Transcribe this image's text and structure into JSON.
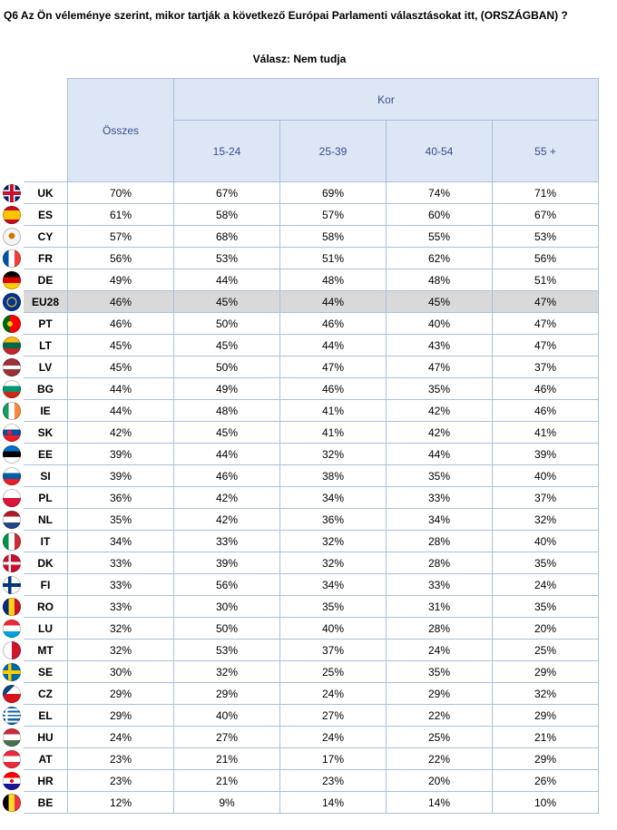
{
  "title": "Q6 Az Ön véleménye szerint, mikor tartják a következő Európai Parlamenti választásokat itt, (ORSZÁGBAN) ?",
  "subtitle": "Válasz: Nem tudja",
  "headers": {
    "total": "Összes",
    "group": "Kor",
    "columns": [
      "15-24",
      "25-39",
      "40-54",
      "55 +"
    ]
  },
  "rows": [
    {
      "code": "UK",
      "total": "70%",
      "v": [
        "67%",
        "69%",
        "74%",
        "71%"
      ]
    },
    {
      "code": "ES",
      "total": "61%",
      "v": [
        "58%",
        "57%",
        "60%",
        "67%"
      ]
    },
    {
      "code": "CY",
      "total": "57%",
      "v": [
        "68%",
        "58%",
        "55%",
        "53%"
      ]
    },
    {
      "code": "FR",
      "total": "56%",
      "v": [
        "53%",
        "51%",
        "62%",
        "56%"
      ]
    },
    {
      "code": "DE",
      "total": "49%",
      "v": [
        "44%",
        "48%",
        "48%",
        "51%"
      ]
    },
    {
      "code": "EU28",
      "total": "46%",
      "v": [
        "45%",
        "44%",
        "45%",
        "47%"
      ],
      "highlight": true
    },
    {
      "code": "PT",
      "total": "46%",
      "v": [
        "50%",
        "46%",
        "40%",
        "47%"
      ]
    },
    {
      "code": "LT",
      "total": "45%",
      "v": [
        "45%",
        "44%",
        "43%",
        "47%"
      ]
    },
    {
      "code": "LV",
      "total": "45%",
      "v": [
        "50%",
        "47%",
        "47%",
        "37%"
      ]
    },
    {
      "code": "BG",
      "total": "44%",
      "v": [
        "49%",
        "46%",
        "35%",
        "46%"
      ]
    },
    {
      "code": "IE",
      "total": "44%",
      "v": [
        "48%",
        "41%",
        "42%",
        "46%"
      ]
    },
    {
      "code": "SK",
      "total": "42%",
      "v": [
        "45%",
        "41%",
        "42%",
        "41%"
      ]
    },
    {
      "code": "EE",
      "total": "39%",
      "v": [
        "44%",
        "32%",
        "44%",
        "39%"
      ]
    },
    {
      "code": "SI",
      "total": "39%",
      "v": [
        "46%",
        "38%",
        "35%",
        "40%"
      ]
    },
    {
      "code": "PL",
      "total": "36%",
      "v": [
        "42%",
        "34%",
        "33%",
        "37%"
      ]
    },
    {
      "code": "NL",
      "total": "35%",
      "v": [
        "42%",
        "36%",
        "34%",
        "32%"
      ]
    },
    {
      "code": "IT",
      "total": "34%",
      "v": [
        "33%",
        "32%",
        "28%",
        "40%"
      ]
    },
    {
      "code": "DK",
      "total": "33%",
      "v": [
        "39%",
        "32%",
        "28%",
        "35%"
      ]
    },
    {
      "code": "FI",
      "total": "33%",
      "v": [
        "56%",
        "34%",
        "33%",
        "24%"
      ]
    },
    {
      "code": "RO",
      "total": "33%",
      "v": [
        "30%",
        "35%",
        "31%",
        "35%"
      ]
    },
    {
      "code": "LU",
      "total": "32%",
      "v": [
        "50%",
        "40%",
        "28%",
        "20%"
      ]
    },
    {
      "code": "MT",
      "total": "32%",
      "v": [
        "53%",
        "37%",
        "24%",
        "25%"
      ]
    },
    {
      "code": "SE",
      "total": "30%",
      "v": [
        "32%",
        "25%",
        "35%",
        "29%"
      ]
    },
    {
      "code": "CZ",
      "total": "29%",
      "v": [
        "29%",
        "24%",
        "29%",
        "32%"
      ]
    },
    {
      "code": "EL",
      "total": "29%",
      "v": [
        "40%",
        "27%",
        "22%",
        "29%"
      ]
    },
    {
      "code": "HU",
      "total": "24%",
      "v": [
        "27%",
        "24%",
        "25%",
        "21%"
      ]
    },
    {
      "code": "AT",
      "total": "23%",
      "v": [
        "21%",
        "17%",
        "22%",
        "29%"
      ]
    },
    {
      "code": "HR",
      "total": "23%",
      "v": [
        "21%",
        "23%",
        "20%",
        "26%"
      ]
    },
    {
      "code": "BE",
      "total": "12%",
      "v": [
        "9%",
        "14%",
        "14%",
        "10%"
      ]
    }
  ],
  "flags": {
    "UK": "linear-gradient(0deg,transparent 40%,#c8102e 40%,#c8102e 60%,transparent 60%),linear-gradient(90deg,transparent 40%,#c8102e 40%,#c8102e 60%,transparent 60%),linear-gradient(0deg,transparent 32%,#fff 32%,#fff 68%,transparent 68%),linear-gradient(90deg,transparent 32%,#fff 32%,#fff 68%,transparent 68%),#012169",
    "ES": "linear-gradient(180deg,#c60b1e 25%,#ffc400 25%,#ffc400 75%,#c60b1e 75%)",
    "CY": "radial-gradient(circle at 50% 45%,#d57800 0 22%,#f4f4f4 23%)",
    "FR": "linear-gradient(90deg,#0055a4 33%,#fff 33%,#fff 66%,#ef4135 66%)",
    "DE": "linear-gradient(180deg,#000 33%,#dd0000 33%,#dd0000 66%,#ffce00 66%)",
    "EU28": "radial-gradient(circle,#003399 0 30%,#ffcc00 31% 38%,#003399 39%)",
    "PT": "radial-gradient(circle at 40% 50%,#ffcc00 0 18%,transparent 19%),linear-gradient(90deg,#006600 40%,#ff0000 40%)",
    "LT": "linear-gradient(180deg,#fdb913 33%,#006a44 33%,#006a44 66%,#c1272d 66%)",
    "LV": "linear-gradient(180deg,#9e3039 40%,#fff 40%,#fff 60%,#9e3039 60%)",
    "BG": "linear-gradient(180deg,#fff 33%,#00966e 33%,#00966e 66%,#d62612 66%)",
    "IE": "linear-gradient(90deg,#169b62 33%,#fff 33%,#fff 66%,#ff883e 66%)",
    "SK": "radial-gradient(circle at 38% 50%,#ee1c25 0 16%,transparent 17%),linear-gradient(180deg,#fff 33%,#0b4ea2 33%,#0b4ea2 66%,#ee1c25 66%)",
    "EE": "linear-gradient(180deg,#0072ce 33%,#000 33%,#000 66%,#fff 66%)",
    "SI": "linear-gradient(180deg,#fff 33%,#005da4 33%,#005da4 66%,#ed1c24 66%)",
    "PL": "linear-gradient(180deg,#fff 50%,#dc143c 50%)",
    "NL": "linear-gradient(180deg,#ae1c28 33%,#fff 33%,#fff 66%,#21468b 66%)",
    "IT": "linear-gradient(90deg,#009246 33%,#fff 33%,#fff 66%,#ce2b37 66%)",
    "DK": "linear-gradient(0deg,transparent 42%,#fff 42%,#fff 58%,transparent 58%),linear-gradient(90deg,transparent 32%,#fff 32%,#fff 46%,transparent 46%),#c8102e",
    "FI": "linear-gradient(0deg,transparent 40%,#003580 40%,#003580 60%,transparent 60%),linear-gradient(90deg,transparent 30%,#003580 30%,#003580 48%,transparent 48%),#fff",
    "RO": "linear-gradient(90deg,#002b7f 33%,#fcd116 33%,#fcd116 66%,#ce1126 66%)",
    "LU": "linear-gradient(180deg,#ed2939 33%,#fff 33%,#fff 66%,#00a1de 66%)",
    "MT": "linear-gradient(90deg,#fff 50%,#cf142b 50%)",
    "SE": "linear-gradient(0deg,transparent 40%,#fecc00 40%,#fecc00 60%,transparent 60%),linear-gradient(90deg,transparent 30%,#fecc00 30%,#fecc00 48%,transparent 48%),#006aa7",
    "CZ": "linear-gradient(135deg,#11457e 35%,transparent 35%),linear-gradient(180deg,#fff 50%,#d7141a 50%)",
    "EL": "linear-gradient(0deg,transparent 36%,#fff 36%,#fff 48%,transparent 48%),linear-gradient(90deg,transparent 16%,#fff 16%,#fff 28%,transparent 28%),repeating-linear-gradient(180deg,#0d5eaf 0 11%,#fff 11% 22%)",
    "HU": "linear-gradient(180deg,#ce2939 33%,#fff 33%,#fff 66%,#477050 66%)",
    "AT": "linear-gradient(180deg,#ed2939 33%,#fff 33%,#fff 66%,#ed2939 66%)",
    "HR": "radial-gradient(circle at 50% 50%,#ff0000 0 14%,transparent 15%),linear-gradient(180deg,#ff0000 33%,#fff 33%,#fff 66%,#171796 66%)",
    "BE": "linear-gradient(90deg,#000 33%,#fdda24 33%,#fdda24 66%,#ef3340 66%)"
  }
}
